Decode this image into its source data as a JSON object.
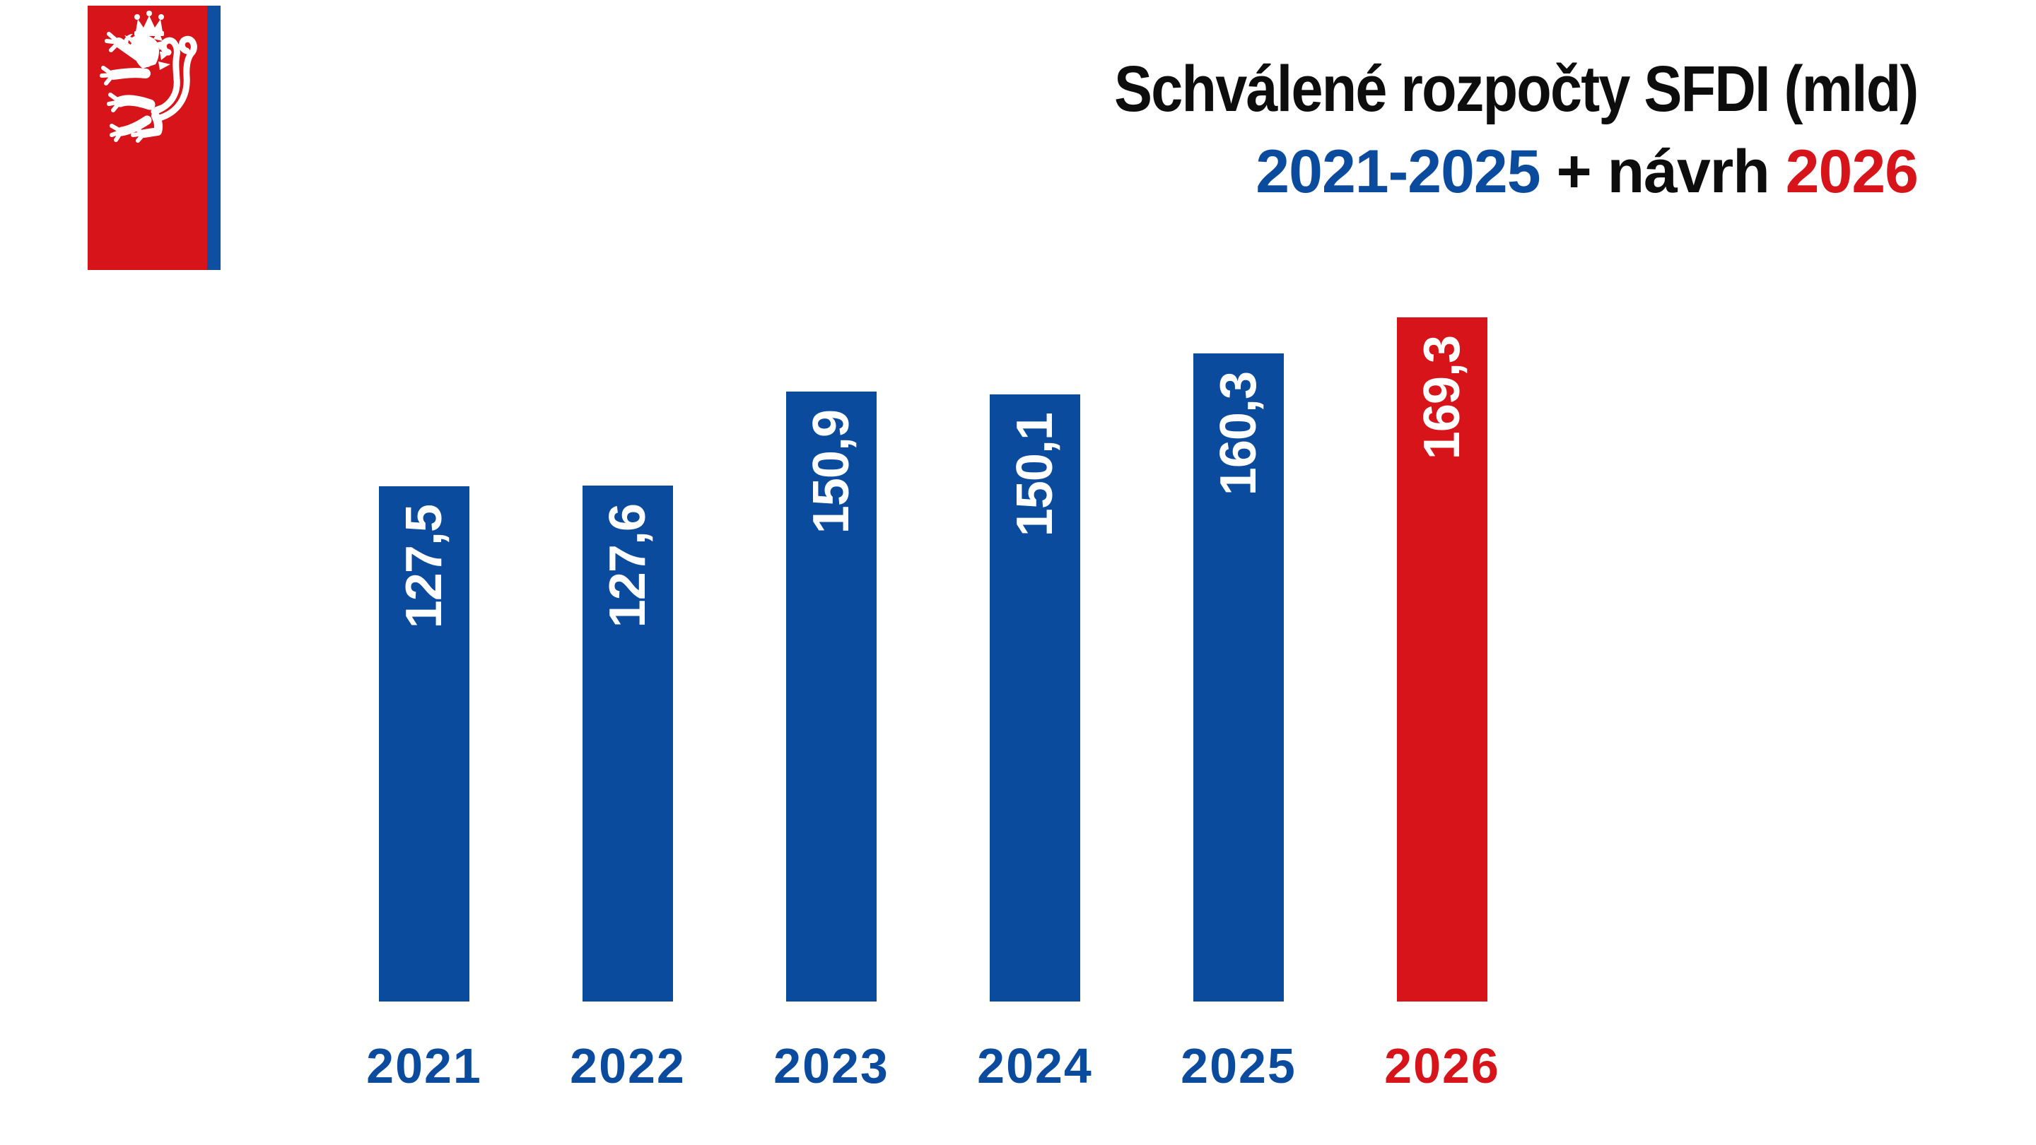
{
  "page": {
    "background": "#ffffff"
  },
  "colors": {
    "blue": "#0a4b9e",
    "red": "#d7141a",
    "black": "#0d0d0d",
    "white": "#ffffff"
  },
  "logo": {
    "name": "czech-lion-emblem-flag",
    "field_red": "#d7141a",
    "stripe_blue": "#0f4f9f",
    "lion_white": "#ffffff"
  },
  "title": {
    "line1": "Schválené rozpočty SFDI (mld)",
    "line1_color": "#0d0d0d",
    "range": "2021-2025",
    "range_color": "#0a4b9e",
    "plus_navrh": " + návrh ",
    "plus_navrh_color": "#0d0d0d",
    "proposal_year": "2026",
    "proposal_year_color": "#d7141a"
  },
  "chart_data": {
    "type": "bar",
    "title": "Schválené rozpočty SFDI (mld) 2021-2025 + návrh 2026",
    "categories": [
      "2021",
      "2022",
      "2023",
      "2024",
      "2025",
      "2026"
    ],
    "values": [
      127.5,
      127.6,
      150.9,
      150.1,
      160.3,
      169.3
    ],
    "value_labels": [
      "127,5",
      "127,6",
      "150,9",
      "150,1",
      "160,3",
      "169,3"
    ],
    "bar_colors": [
      "#0a4b9e",
      "#0a4b9e",
      "#0a4b9e",
      "#0a4b9e",
      "#0a4b9e",
      "#d7141a"
    ],
    "category_colors": [
      "#0a4b9e",
      "#0a4b9e",
      "#0a4b9e",
      "#0a4b9e",
      "#0a4b9e",
      "#d7141a"
    ],
    "value_label_color": "#ffffff",
    "value_label_rotation": -90,
    "xlabel": "",
    "ylabel": "",
    "unit": "mld",
    "ylim": [
      0,
      169.3
    ],
    "baseline": 0,
    "grid": false,
    "legend": "none",
    "axes_visible": false
  }
}
